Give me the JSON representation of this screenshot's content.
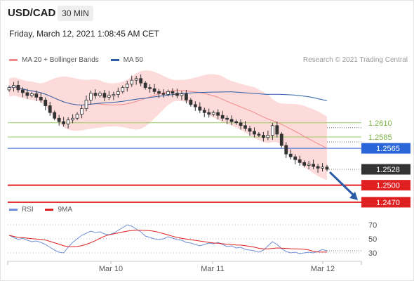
{
  "header": {
    "pair": "USD/CAD",
    "timeframe": "30 MIN",
    "timestamp": "Friday, March 12, 2021 1:08:45 AM CET"
  },
  "legend": {
    "ma20_label": "MA 20 + Bollinger Bands",
    "ma50_label": "MA 50",
    "credit": "Research © 2021 Trading Central"
  },
  "rsi_legend": {
    "rsi_label": "RSI",
    "ma_label": "9MA"
  },
  "colors": {
    "candle": "#333333",
    "candle_up_fill": "#ffffff",
    "ma20": "#f28b8b",
    "bollinger_fill": "#fdd5d5",
    "ma50": "#2b5fa8",
    "resistance": "#9acd60",
    "pivot": "#2b66d9",
    "support": "#e02020",
    "price_label": "#333333",
    "rsi": "#6f8fd8",
    "rsi_ma": "#e02020",
    "arrow": "#2a5aa5"
  },
  "chart_data": [
    {
      "type": "line",
      "name": "price",
      "x_labels": [
        "Mar 10",
        "Mar 11",
        "Mar 12"
      ],
      "ylim": [
        1.2455,
        1.2705
      ],
      "series": [
        {
          "name": "USD/CAD",
          "kind": "candlestick",
          "close": [
            1.2672,
            1.2676,
            1.2668,
            1.2663,
            1.2658,
            1.2661,
            1.2655,
            1.265,
            1.264,
            1.2628,
            1.2618,
            1.2612,
            1.2608,
            1.2615,
            1.2618,
            1.2625,
            1.2635,
            1.265,
            1.2662,
            1.2658,
            1.2662,
            1.2655,
            1.2658,
            1.266,
            1.2665,
            1.2672,
            1.2678,
            1.2685,
            1.2688,
            1.268,
            1.2672,
            1.267,
            1.2665,
            1.2662,
            1.266,
            1.2665,
            1.2662,
            1.2658,
            1.2661,
            1.265,
            1.2642,
            1.2638,
            1.2632,
            1.2628,
            1.2625,
            1.2628,
            1.2623,
            1.2618,
            1.2616,
            1.2612,
            1.261,
            1.2605,
            1.26,
            1.2595,
            1.259,
            1.2588,
            1.2584,
            1.2588,
            1.2605,
            1.259,
            1.257,
            1.2555,
            1.255,
            1.2545,
            1.254,
            1.2535,
            1.2537,
            1.2533,
            1.253,
            1.2532,
            1.2528
          ],
          "high_low_spread": 0.0009
        },
        {
          "name": "MA 20",
          "values_from": "moving-average-20"
        },
        {
          "name": "MA 50",
          "values_from": "moving-average-50"
        }
      ],
      "levels": [
        {
          "label": "1.2610",
          "value": 1.261,
          "role": "resistance"
        },
        {
          "label": "1.2585",
          "value": 1.2585,
          "role": "resistance"
        },
        {
          "label": "1.2565",
          "value": 1.2565,
          "role": "pivot"
        },
        {
          "label": "1.2528",
          "value": 1.2528,
          "role": "last"
        },
        {
          "label": "1.2500",
          "value": 1.25,
          "role": "support"
        },
        {
          "label": "1.2470",
          "value": 1.247,
          "role": "support"
        }
      ],
      "projection_target": 1.247
    },
    {
      "type": "line",
      "name": "rsi",
      "ylim": [
        22,
        78
      ],
      "yticks": [
        "70",
        "50",
        "30"
      ],
      "tick_values": [
        70,
        50,
        30
      ],
      "series": [
        {
          "name": "RSI",
          "values": [
            55,
            52,
            49,
            51,
            48,
            46,
            47,
            45,
            42,
            38,
            34,
            31,
            30,
            38,
            45,
            50,
            55,
            58,
            61,
            59,
            60,
            57,
            56,
            58,
            62,
            66,
            70,
            68,
            64,
            60,
            54,
            52,
            50,
            49,
            50,
            53,
            51,
            49,
            48,
            45,
            44,
            42,
            40,
            42,
            44,
            43,
            45,
            42,
            39,
            40,
            37,
            38,
            35,
            34,
            33,
            31,
            34,
            40,
            46,
            42,
            36,
            32,
            30,
            31,
            29,
            30,
            31,
            30,
            32,
            35,
            33
          ]
        },
        {
          "name": "9MA",
          "values_from": "moving-average-9"
        }
      ]
    }
  ]
}
